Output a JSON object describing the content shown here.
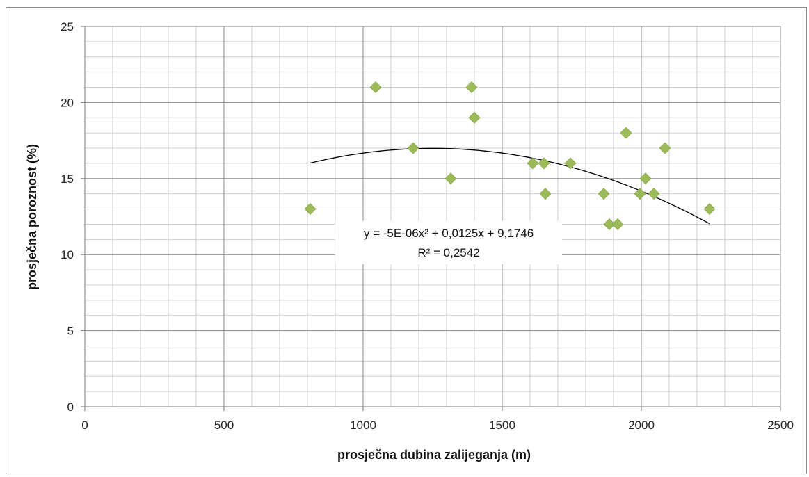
{
  "chart_data": {
    "type": "scatter",
    "title": "",
    "xlabel": "prosječna dubina zalijeganja (m)",
    "ylabel": "prosječna poroznost (%)",
    "xlim": [
      0,
      2500
    ],
    "ylim": [
      0,
      25
    ],
    "x_ticks": [
      "0",
      "500",
      "1000",
      "1500",
      "2000",
      "2500"
    ],
    "y_ticks": [
      "0",
      "5",
      "10",
      "15",
      "20",
      "25"
    ],
    "grid": true,
    "legend": "none",
    "marker": "diamond",
    "marker_color": "#9bbb59",
    "points": [
      {
        "x": 810,
        "y": 13
      },
      {
        "x": 1045,
        "y": 21
      },
      {
        "x": 1180,
        "y": 17
      },
      {
        "x": 1315,
        "y": 15
      },
      {
        "x": 1390,
        "y": 21
      },
      {
        "x": 1400,
        "y": 19
      },
      {
        "x": 1610,
        "y": 16
      },
      {
        "x": 1650,
        "y": 16
      },
      {
        "x": 1655,
        "y": 14
      },
      {
        "x": 1745,
        "y": 16
      },
      {
        "x": 1865,
        "y": 14
      },
      {
        "x": 1885,
        "y": 12
      },
      {
        "x": 1915,
        "y": 12
      },
      {
        "x": 1945,
        "y": 18
      },
      {
        "x": 1995,
        "y": 14
      },
      {
        "x": 2015,
        "y": 15
      },
      {
        "x": 2045,
        "y": 14
      },
      {
        "x": 2085,
        "y": 17
      },
      {
        "x": 2245,
        "y": 13
      }
    ],
    "trendline": {
      "type": "polynomial",
      "order": 2,
      "coefficients": [
        -5e-06,
        0.0125,
        9.1746
      ],
      "x_range": [
        810,
        2245
      ],
      "color": "#000000"
    },
    "annotations": {
      "equation": "y = -5E-06x² + 0,0125x + 9,1746",
      "r_squared": "R² = 0,2542"
    }
  }
}
